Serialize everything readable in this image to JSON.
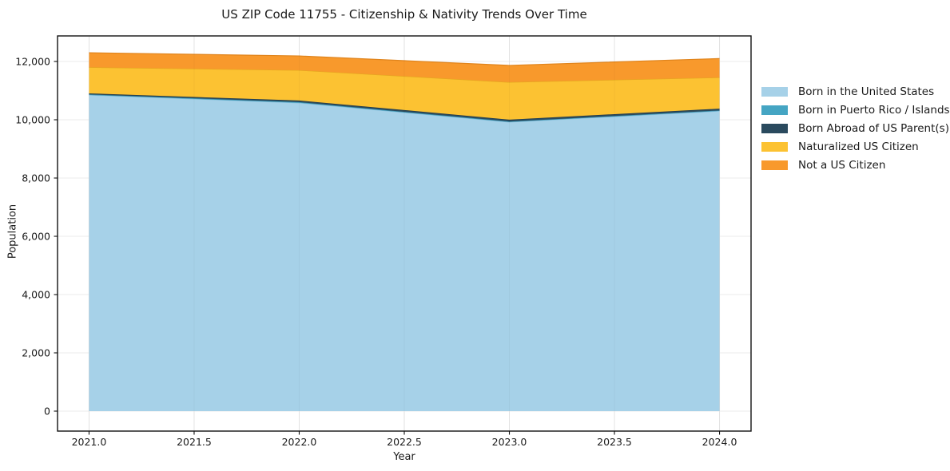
{
  "chart_data": {
    "type": "area",
    "stacked": true,
    "title": "US ZIP Code 11755 - Citizenship & Nativity Trends Over Time",
    "xlabel": "Year",
    "ylabel": "Population",
    "x": [
      2021,
      2022,
      2023,
      2024
    ],
    "series": [
      {
        "name": "Born in the United States",
        "color": "#a6d1e8",
        "edge": "#86bfdd",
        "values": [
          10850,
          10580,
          9920,
          10300
        ]
      },
      {
        "name": "Born in Puerto Rico / Islands",
        "color": "#45a5c3",
        "edge": "#3a91ad",
        "values": [
          20,
          25,
          20,
          20
        ]
      },
      {
        "name": "Born Abroad of US Parent(s)",
        "color": "#2a4a5e",
        "edge": "#20394a",
        "values": [
          35,
          55,
          65,
          60
        ]
      },
      {
        "name": "Naturalized US Citizen",
        "color": "#fcc232",
        "edge": "#e3a81e",
        "values": [
          895,
          1040,
          1285,
          1070
        ]
      },
      {
        "name": "Not a US Citizen",
        "color": "#f8992c",
        "edge": "#e0841c",
        "values": [
          500,
          490,
          575,
          650
        ]
      }
    ],
    "xticks": {
      "values": [
        2021.0,
        2021.5,
        2022.0,
        2022.5,
        2023.0,
        2023.5,
        2024.0
      ],
      "labels": [
        "2021.0",
        "2021.5",
        "2022.0",
        "2022.5",
        "2023.0",
        "2023.5",
        "2024.0"
      ]
    },
    "yticks": {
      "values": [
        0,
        2000,
        4000,
        6000,
        8000,
        10000,
        12000
      ],
      "labels": [
        "0",
        "2,000",
        "4,000",
        "6,000",
        "8,000",
        "10,000",
        "12,000"
      ]
    },
    "xlim": [
      2020.85,
      2024.15
    ],
    "ylim": [
      -685,
      12877
    ],
    "grid": true,
    "legend_position": "right of plot, frameless"
  }
}
